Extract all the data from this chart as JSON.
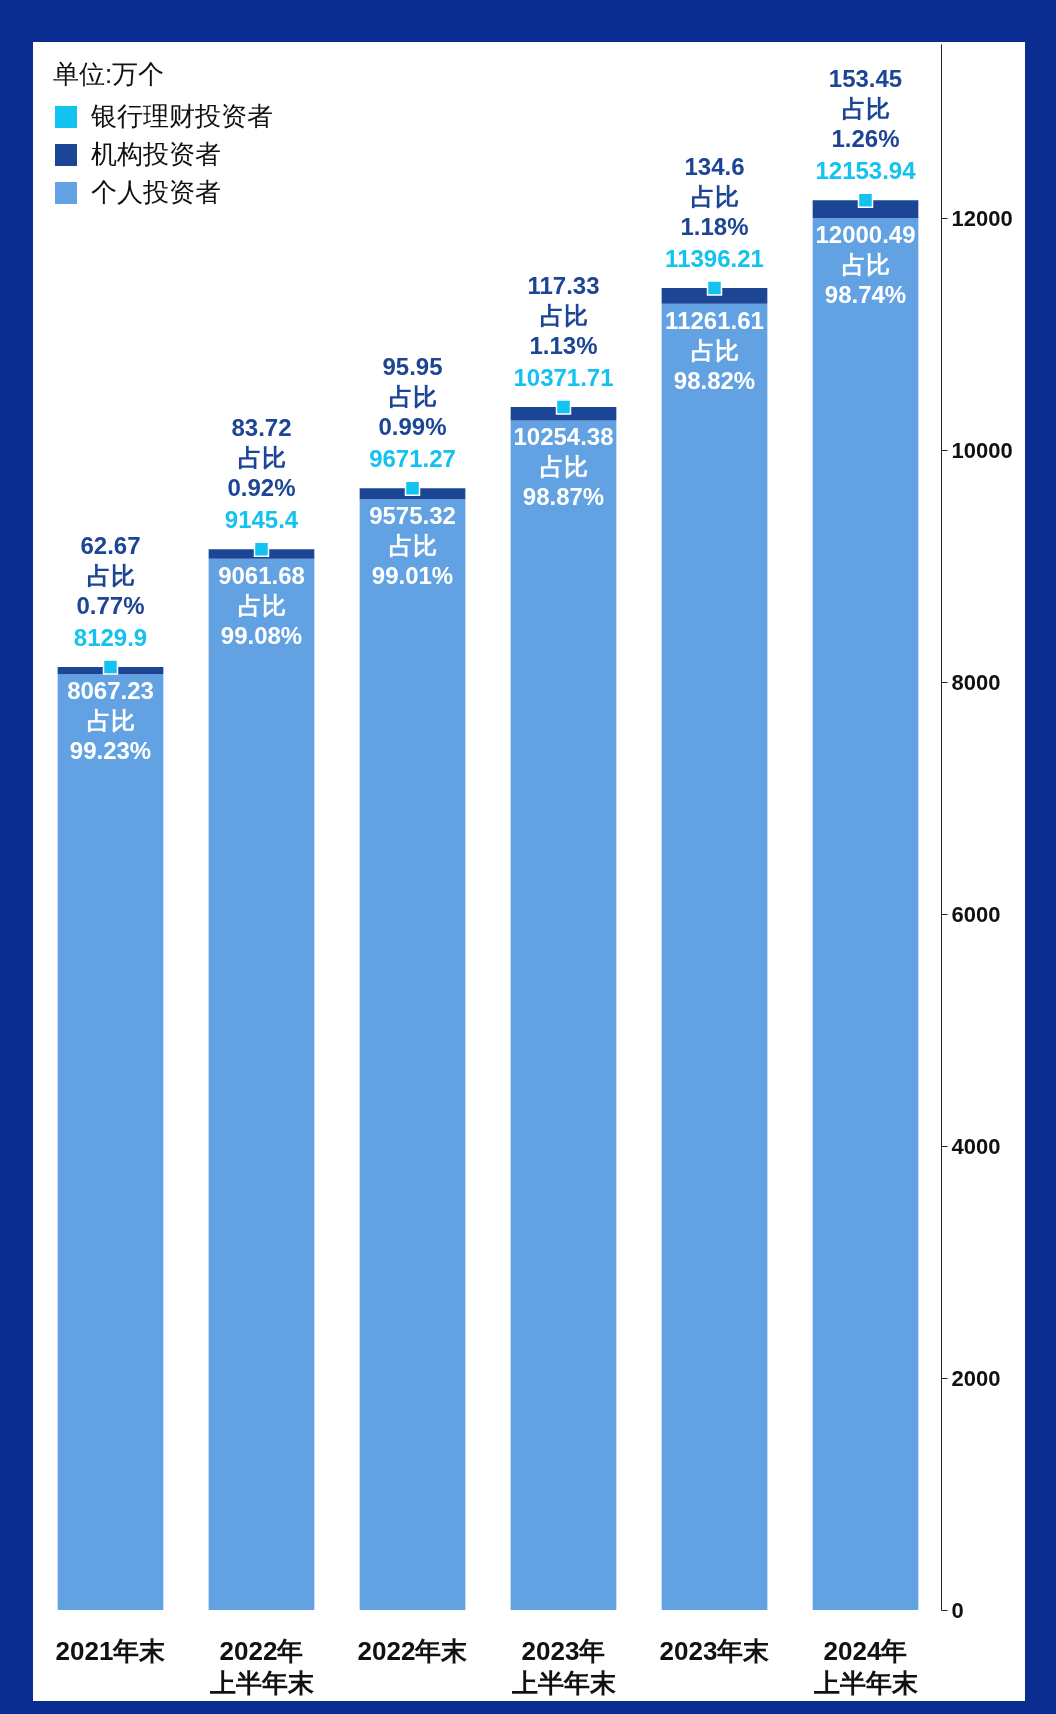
{
  "chart_data": {
    "type": "bar",
    "stacked": true,
    "legend": "top left",
    "legend_title": "单位:万个",
    "grid": false,
    "categories": [
      "2021年末",
      "2022年上半年末",
      "2022年末",
      "2023年上半年末",
      "2023年末",
      "2024年上半年末"
    ],
    "ylim": [
      0,
      13500
    ],
    "yticks": [
      0,
      2000,
      4000,
      6000,
      8000,
      10000,
      12000
    ],
    "series": [
      {
        "name": "个人投资者",
        "color": "#62a2e2",
        "values": [
          8067.23,
          9061.68,
          9575.32,
          10254.38,
          11261.61,
          12000.49
        ],
        "value_labels": [
          "8067.23 占比 99.23%",
          "9061.68 占比 99.08%",
          "9575.32 占比 99.01%",
          "10254.38 占比 98.87%",
          "11261.61 占比 98.82%",
          "12000.49 占比 98.74%"
        ]
      },
      {
        "name": "机构投资者",
        "color": "#1c4596",
        "values": [
          62.67,
          83.72,
          95.95,
          117.33,
          134.6,
          153.45
        ],
        "value_labels": [
          "62.67 占比 0.77%",
          "83.72 占比 0.92%",
          "95.95 占比 0.99%",
          "117.33 占比 1.13%",
          "134.6 占比 1.18%",
          "153.45 占比 1.26%"
        ]
      },
      {
        "name": "银行理财投资者",
        "type": "scatter",
        "marker": "square",
        "color": "#14c2f0",
        "values": [
          8129.9,
          9145.4,
          9671.27,
          10371.71,
          11396.21,
          12153.94
        ],
        "value_labels": [
          "8129.9",
          "9145.4",
          "9671.27",
          "10371.71",
          "11396.21",
          "12153.94"
        ]
      }
    ]
  }
}
